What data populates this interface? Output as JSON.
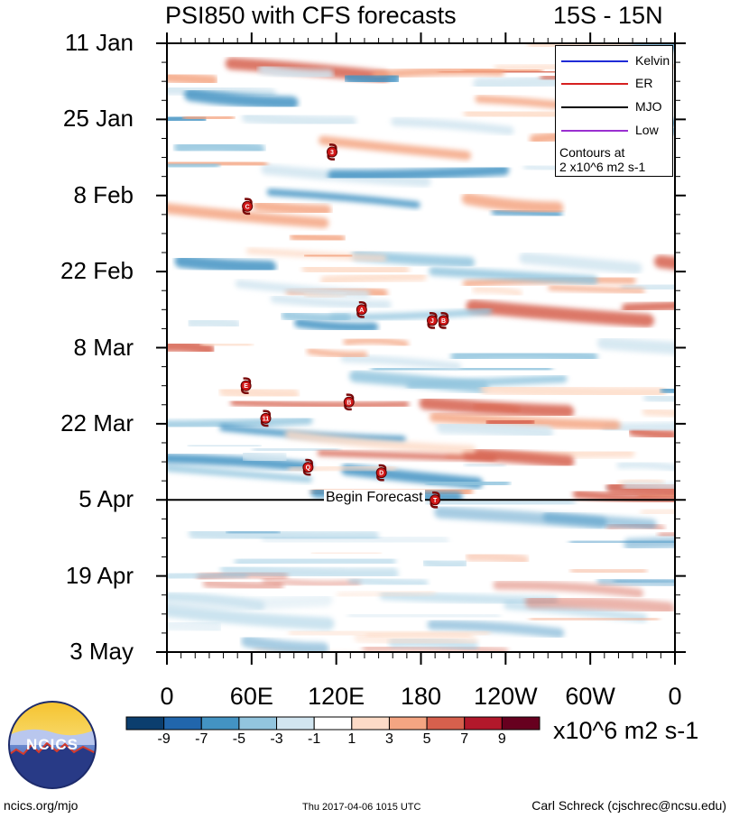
{
  "title": {
    "left": "PSI850 with CFS forecasts",
    "right": "15S - 15N"
  },
  "chart_data": {
    "type": "heatmap",
    "title": "PSI850 with CFS forecasts",
    "subtitle": "15S - 15N",
    "x_ticks": [
      "0",
      "60E",
      "120E",
      "180",
      "120W",
      "60W",
      "0"
    ],
    "x_range_deg": [
      0,
      360
    ],
    "y_ticks": [
      "11 Jan",
      "25 Jan",
      "8 Feb",
      "22 Feb",
      "8 Mar",
      "22 Mar",
      "5 Apr",
      "19 Apr",
      "3 May"
    ],
    "y_range_days": [
      0,
      112
    ],
    "forecast_start_label": "Begin Forecast",
    "forecast_start_day": 84,
    "colorbar": {
      "labels": [
        "-9",
        "-7",
        "-5",
        "-3",
        "-1",
        "1",
        "3",
        "5",
        "7",
        "9"
      ],
      "colors": [
        "#0b3e6e",
        "#2166ac",
        "#4393c3",
        "#92c5de",
        "#d1e5f0",
        "#ffffff",
        "#fddbc7",
        "#f4a582",
        "#d6604d",
        "#b2182b",
        "#67001f"
      ],
      "units": "x10^6 m2 s-1"
    },
    "legend": [
      {
        "label": "Kelvin",
        "color": "#1f2bd6"
      },
      {
        "label": "ER",
        "color": "#d62020"
      },
      {
        "label": "MJO",
        "color": "#000000"
      },
      {
        "label": "Low",
        "color": "#9a30d0"
      }
    ],
    "legend_note": [
      "Contours at",
      "2 x10^6 m2 s-1"
    ],
    "storms": [
      {
        "label": "3",
        "lon": 117,
        "day": 20
      },
      {
        "label": "C",
        "lon": 57,
        "day": 30
      },
      {
        "label": "A",
        "lon": 138,
        "day": 49
      },
      {
        "label": "J",
        "lon": 188,
        "day": 51
      },
      {
        "label": "B",
        "lon": 196,
        "day": 51
      },
      {
        "label": "E",
        "lon": 56,
        "day": 63
      },
      {
        "label": "B",
        "lon": 129,
        "day": 66
      },
      {
        "label": "11",
        "lon": 70,
        "day": 69
      },
      {
        "label": "Q",
        "lon": 100,
        "day": 78
      },
      {
        "label": "D",
        "lon": 152,
        "day": 79
      },
      {
        "label": "T",
        "lon": 190,
        "day": 84
      }
    ]
  },
  "logo": {
    "text": "NCICS"
  },
  "footer": {
    "left": "ncics.org/mjo",
    "center": "Thu 2017-04-06 1015 UTC",
    "right": "Carl Schreck (cjschrec@ncsu.edu)"
  }
}
